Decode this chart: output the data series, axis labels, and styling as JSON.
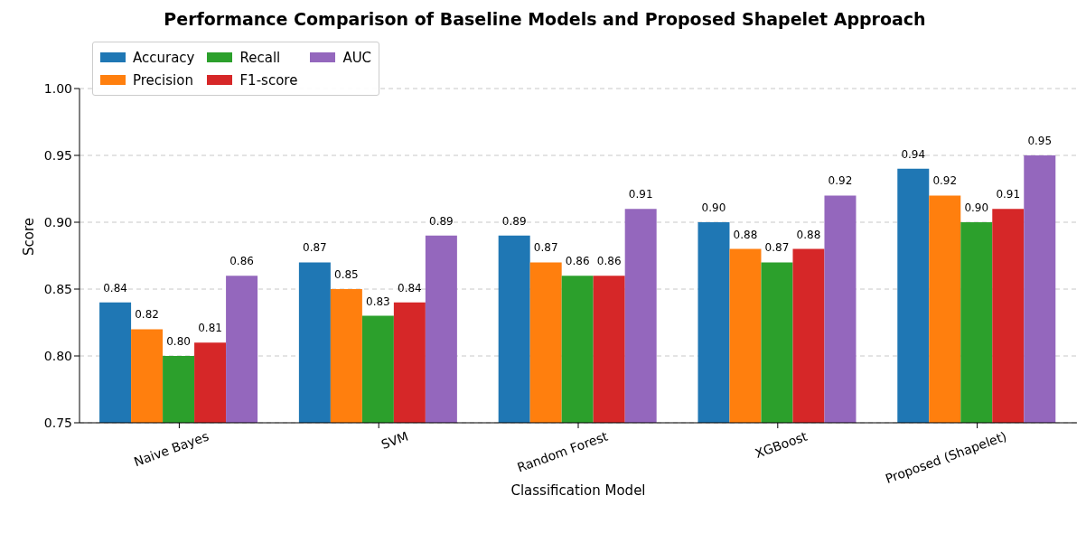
{
  "chart_data": {
    "type": "bar",
    "title": "Performance Comparison of Baseline Models and Proposed Shapelet Approach",
    "xlabel": "Classification Model",
    "ylabel": "Score",
    "categories": [
      "Naive Bayes",
      "SVM",
      "Random Forest",
      "XGBoost",
      "Proposed (Shapelet)"
    ],
    "series": [
      {
        "name": "Accuracy",
        "color": "#1f77b4",
        "values": [
          0.84,
          0.87,
          0.89,
          0.9,
          0.94
        ],
        "value_labels": [
          "0.84",
          "0.87",
          "0.89",
          "0.90",
          "0.94"
        ]
      },
      {
        "name": "Precision",
        "color": "#ff7f0e",
        "values": [
          0.82,
          0.85,
          0.87,
          0.88,
          0.92
        ],
        "value_labels": [
          "0.82",
          "0.85",
          "0.87",
          "0.88",
          "0.92"
        ]
      },
      {
        "name": "Recall",
        "color": "#2ca02c",
        "values": [
          0.8,
          0.83,
          0.86,
          0.87,
          0.9
        ],
        "value_labels": [
          "0.80",
          "0.83",
          "0.86",
          "0.87",
          "0.90"
        ]
      },
      {
        "name": "F1-score",
        "color": "#d62728",
        "values": [
          0.81,
          0.84,
          0.86,
          0.88,
          0.91
        ],
        "value_labels": [
          "0.81",
          "0.84",
          "0.86",
          "0.88",
          "0.91"
        ]
      },
      {
        "name": "AUC",
        "color": "#9467bd",
        "values": [
          0.86,
          0.89,
          0.91,
          0.92,
          0.95
        ],
        "value_labels": [
          "0.86",
          "0.89",
          "0.91",
          "0.92",
          "0.95"
        ]
      }
    ],
    "ylim": [
      0.75,
      1.0
    ],
    "yticks": [
      {
        "value": 0.75,
        "label": "0.75"
      },
      {
        "value": 0.8,
        "label": "0.80"
      },
      {
        "value": 0.85,
        "label": "0.85"
      },
      {
        "value": 0.9,
        "label": "0.90"
      },
      {
        "value": 0.95,
        "label": "0.95"
      },
      {
        "value": 1.0,
        "label": "1.00"
      }
    ],
    "grid": "y",
    "legend": "top left"
  }
}
